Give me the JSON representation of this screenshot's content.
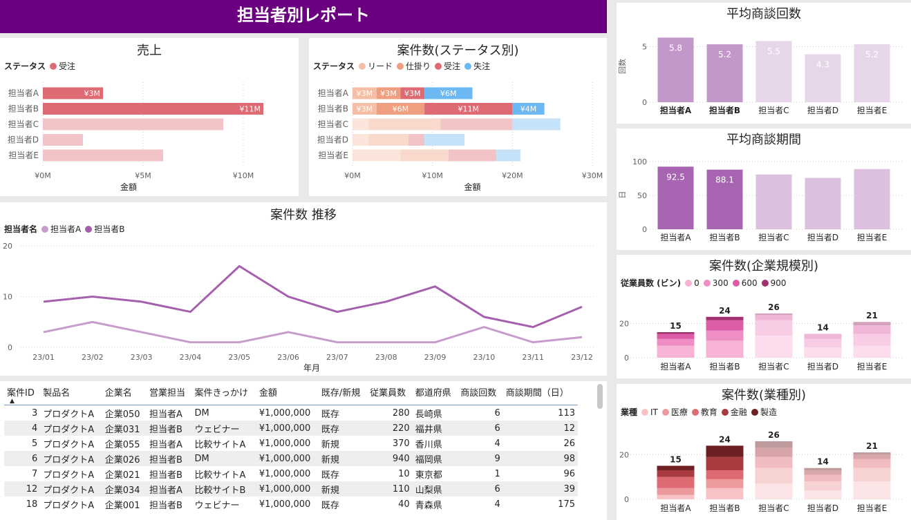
{
  "report_title": "担当者別レポート",
  "persons": [
    "担当者A",
    "担当者B",
    "担当者C",
    "担当者D",
    "担当者E"
  ],
  "sales": {
    "title": "売上",
    "legend_label": "ステータス",
    "legend_items": [
      {
        "name": "受注",
        "color": "#de6a73"
      }
    ],
    "xlabel": "金額",
    "ticks": [
      "¥0M",
      "¥5M",
      "¥10M"
    ]
  },
  "status_chart": {
    "title": "案件数(ステータス別)",
    "legend_label": "ステータス",
    "legend_items": [
      {
        "name": "リード",
        "color": "#f4bfa6"
      },
      {
        "name": "仕掛り",
        "color": "#ef9f80"
      },
      {
        "name": "受注",
        "color": "#de6a73"
      },
      {
        "name": "失注",
        "color": "#6bb8f3"
      }
    ],
    "xlabel": "金額",
    "ticks": [
      "¥0M",
      "¥10M",
      "¥20M",
      "¥30M"
    ]
  },
  "trend": {
    "title": "案件数 推移",
    "legend_label": "担当者名",
    "legend_items": [
      {
        "name": "担当者A",
        "color": "#c79bcc"
      },
      {
        "name": "担当者B",
        "color": "#a560ad"
      }
    ],
    "xlabel": "年月",
    "y_ticks": [
      "0",
      "10",
      "20"
    ]
  },
  "avg_meetings": {
    "title": "平均商談回数",
    "ylabel": "回数",
    "y_ticks": [
      "0",
      "5"
    ]
  },
  "avg_period": {
    "title": "平均商談期間",
    "ylabel": "日",
    "y_ticks": [
      "0",
      "50",
      "100"
    ]
  },
  "size_chart": {
    "title": "案件数(企業規模別)",
    "legend_label": "従業員数 (ビン)",
    "legend_items": [
      {
        "name": "0",
        "color": "#f7b3d6"
      },
      {
        "name": "300",
        "color": "#ee8ec4"
      },
      {
        "name": "600",
        "color": "#dc5ca6"
      },
      {
        "name": "900",
        "color": "#a2306f"
      }
    ],
    "y_ticks": [
      "0",
      "20"
    ]
  },
  "industry_chart": {
    "title": "案件数(業種別)",
    "legend_label": "業種",
    "legend_items": [
      {
        "name": "IT",
        "color": "#f7c3c5"
      },
      {
        "name": "医療",
        "color": "#ec9a9e"
      },
      {
        "name": "教育",
        "color": "#de6a73"
      },
      {
        "name": "金融",
        "color": "#a83a40"
      },
      {
        "name": "製造",
        "color": "#6e1f24"
      }
    ],
    "y_ticks": [
      "0",
      "20"
    ]
  },
  "table": {
    "columns": [
      "案件ID",
      "製品名",
      "企業名",
      "営業担当",
      "案件きっかけ",
      "金額",
      "既存/新規",
      "従業員数",
      "都道府県",
      "商談回数",
      "商談期間（日）"
    ],
    "sort_indicator": "▲",
    "rows": [
      [
        "3",
        "プロダクトA",
        "企業050",
        "担当者A",
        "DM",
        "¥1,000,000",
        "既存",
        "280",
        "長崎県",
        "6",
        "113"
      ],
      [
        "4",
        "プロダクトA",
        "企業031",
        "担当者B",
        "ウェビナー",
        "¥1,000,000",
        "既存",
        "220",
        "福井県",
        "6",
        "12"
      ],
      [
        "5",
        "プロダクトA",
        "企業055",
        "担当者A",
        "比較サイトA",
        "¥1,000,000",
        "新規",
        "370",
        "香川県",
        "4",
        "26"
      ],
      [
        "6",
        "プロダクトA",
        "企業026",
        "担当者B",
        "DM",
        "¥1,000,000",
        "新規",
        "940",
        "福岡県",
        "9",
        "98"
      ],
      [
        "7",
        "プロダクトA",
        "企業021",
        "担当者B",
        "比較サイトA",
        "¥1,000,000",
        "既存",
        "10",
        "東京都",
        "1",
        "96"
      ],
      [
        "12",
        "プロダクトA",
        "企業034",
        "担当者A",
        "比較サイトB",
        "¥1,000,000",
        "新規",
        "110",
        "山梨県",
        "6",
        "39"
      ],
      [
        "18",
        "プロダクトA",
        "企業001",
        "担当者B",
        "ウェビナー",
        "¥1,000,000",
        "既存",
        "40",
        "青森県",
        "4",
        "175"
      ]
    ]
  },
  "chart_data": [
    {
      "type": "bar",
      "orientation": "horizontal",
      "title": "売上",
      "categories": [
        "担当者A",
        "担当者B",
        "担当者C",
        "担当者D",
        "担当者E"
      ],
      "series": [
        {
          "name": "受注",
          "values": [
            3,
            11,
            9,
            2,
            6
          ]
        }
      ],
      "data_labels": [
        "¥3M",
        "¥11M",
        "",
        "",
        ""
      ],
      "highlighted": [
        "担当者A",
        "担当者B"
      ],
      "unit": "¥M",
      "xlabel": "金額",
      "xlim": [
        0,
        12
      ]
    },
    {
      "type": "bar",
      "orientation": "horizontal",
      "stacked": true,
      "title": "案件数(ステータス別)",
      "categories": [
        "担当者A",
        "担当者B",
        "担当者C",
        "担当者D",
        "担当者E"
      ],
      "series": [
        {
          "name": "リード",
          "values": [
            3,
            3,
            2,
            2,
            6
          ]
        },
        {
          "name": "仕掛り",
          "values": [
            3,
            6,
            9,
            5,
            6
          ]
        },
        {
          "name": "受注",
          "values": [
            3,
            11,
            9,
            2,
            6
          ]
        },
        {
          "name": "失注",
          "values": [
            6,
            4,
            6,
            5,
            3
          ]
        }
      ],
      "data_labels": [
        [
          "¥3M",
          "¥3M",
          "¥3M",
          "¥6M"
        ],
        [
          "¥3M",
          "¥6M",
          "¥11M",
          "¥4M"
        ],
        [],
        [],
        []
      ],
      "highlighted": [
        "担当者A",
        "担当者B"
      ],
      "unit": "¥M",
      "xlabel": "金額",
      "xlim": [
        0,
        30
      ]
    },
    {
      "type": "line",
      "title": "案件数 推移",
      "x": [
        "23/01",
        "23/02",
        "23/03",
        "23/04",
        "23/05",
        "23/06",
        "23/07",
        "23/08",
        "23/09",
        "23/10",
        "23/11",
        "23/12"
      ],
      "series": [
        {
          "name": "担当者A",
          "values": [
            3,
            5,
            3,
            1,
            1,
            3,
            1,
            1,
            1,
            4,
            1,
            2
          ]
        },
        {
          "name": "担当者B",
          "values": [
            9,
            10,
            9,
            7,
            16,
            10,
            7,
            9,
            12,
            6,
            4,
            8
          ]
        }
      ],
      "xlabel": "年月",
      "ylim": [
        0,
        20
      ]
    },
    {
      "type": "bar",
      "title": "平均商談回数",
      "categories": [
        "担当者A",
        "担当者B",
        "担当者C",
        "担当者D",
        "担当者E"
      ],
      "values": [
        5.8,
        5.2,
        5.5,
        4.3,
        5.2
      ],
      "highlighted": [
        "担当者A",
        "担当者B"
      ],
      "ylabel": "回数",
      "ylim": [
        0,
        6.2
      ]
    },
    {
      "type": "bar",
      "title": "平均商談期間",
      "categories": [
        "担当者A",
        "担当者B",
        "担当者C",
        "担当者D",
        "担当者E"
      ],
      "values": [
        92.5,
        88.1,
        81,
        76,
        89
      ],
      "data_labels": [
        "92.5",
        "88.1",
        "",
        "",
        ""
      ],
      "highlighted": [
        "担当者A",
        "担当者B"
      ],
      "ylabel": "日",
      "ylim": [
        0,
        100
      ]
    },
    {
      "type": "bar",
      "stacked": true,
      "title": "案件数(企業規模別)",
      "categories": [
        "担当者A",
        "担当者B",
        "担当者C",
        "担当者D",
        "担当者E"
      ],
      "series": [
        {
          "name": "0",
          "values": [
            7,
            10,
            13,
            6,
            7
          ]
        },
        {
          "name": "300",
          "values": [
            4,
            6,
            9,
            5,
            7
          ]
        },
        {
          "name": "600",
          "values": [
            3,
            6,
            3,
            3,
            5
          ]
        },
        {
          "name": "900",
          "values": [
            1,
            2,
            1,
            0,
            2
          ]
        }
      ],
      "totals": [
        15,
        24,
        26,
        14,
        21
      ],
      "highlighted": [
        "担当者A",
        "担当者B"
      ],
      "ylim": [
        0,
        30
      ]
    },
    {
      "type": "bar",
      "stacked": true,
      "title": "案件数(業種別)",
      "categories": [
        "担当者A",
        "担当者B",
        "担当者C",
        "担当者D",
        "担当者E"
      ],
      "series": [
        {
          "name": "IT",
          "values": [
            2,
            5,
            7,
            4,
            8
          ]
        },
        {
          "name": "医療",
          "values": [
            3,
            4,
            7,
            4,
            6
          ]
        },
        {
          "name": "教育",
          "values": [
            5,
            4,
            5,
            3,
            4
          ]
        },
        {
          "name": "金融",
          "values": [
            3,
            6,
            4,
            2,
            2
          ]
        },
        {
          "name": "製造",
          "values": [
            2,
            5,
            3,
            1,
            1
          ]
        }
      ],
      "totals": [
        15,
        24,
        26,
        14,
        21
      ],
      "highlighted": [
        "担当者A",
        "担当者B"
      ],
      "ylim": [
        0,
        30
      ]
    }
  ]
}
